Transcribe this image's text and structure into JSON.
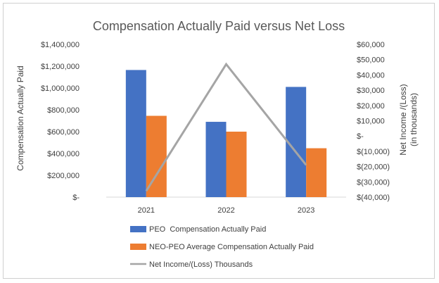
{
  "chart_data": {
    "type": "bar",
    "title": "Compensation Actually Paid versus Net Loss",
    "categories": [
      "2021",
      "2022",
      "2023"
    ],
    "series": [
      {
        "name": "PEO  Compensation Actually Paid",
        "type": "bar",
        "axis": "left",
        "color": "#4472C4",
        "values": [
          1165000,
          690000,
          1010000
        ]
      },
      {
        "name": "NEO-PEO Average Compensation Actually Paid",
        "type": "bar",
        "axis": "left",
        "color": "#ED7D31",
        "values": [
          745000,
          600000,
          448000
        ]
      },
      {
        "name": "Net Income/(Loss) Thousands",
        "type": "line",
        "axis": "right",
        "color": "#A5A5A5",
        "values": [
          -36000,
          47000,
          -19000
        ]
      }
    ],
    "y_left": {
      "label": "Compensation Actually Paid",
      "range": [
        0,
        1400000
      ],
      "ticks": [
        0,
        200000,
        400000,
        600000,
        800000,
        1000000,
        1200000,
        1400000
      ],
      "tick_labels": [
        "$-",
        "$200,000",
        "$400,000",
        "$600,000",
        "$800,000",
        "$1,000,000",
        "$1,200,000",
        "$1,400,000"
      ]
    },
    "y_right": {
      "label_line1": "Net Income /(Loss)",
      "label_line2": "(in thousands)",
      "range": [
        -40000,
        60000
      ],
      "ticks": [
        -40000,
        -30000,
        -20000,
        -10000,
        0,
        10000,
        20000,
        30000,
        40000,
        50000,
        60000
      ],
      "tick_labels": [
        "$(40,000)",
        "$(30,000)",
        "$(20,000)",
        "$(10,000)",
        "$-",
        "$10,000",
        "$20,000",
        "$30,000",
        "$40,000",
        "$50,000",
        "$60,000"
      ]
    },
    "grid": false,
    "legend_position": "bottom"
  }
}
